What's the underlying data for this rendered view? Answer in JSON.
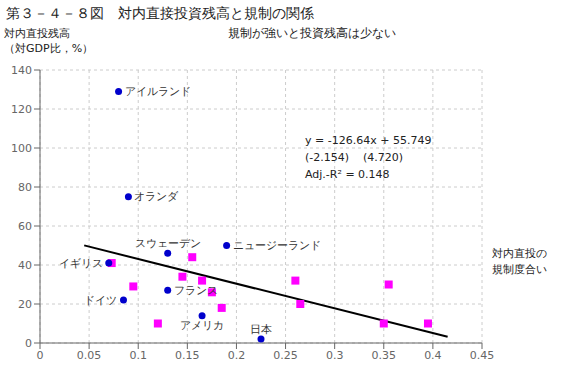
{
  "chart_data": {
    "type": "scatter",
    "title": "第３－４－８図　対内直接投資残高と規制の関係",
    "subtitle": "規制が強いと投資残高は少ない",
    "ylabel": "対内直投残高\n（対GDP比，%）",
    "xlabel": "対内直投の\n規制度合い",
    "xlim": [
      0,
      0.45
    ],
    "ylim": [
      0,
      140
    ],
    "xticks": [
      0,
      0.05,
      0.1,
      0.15,
      0.2,
      0.25,
      0.3,
      0.35,
      0.4,
      0.45
    ],
    "yticks": [
      0,
      20,
      40,
      60,
      80,
      100,
      120,
      140
    ],
    "grid": true,
    "series": [
      {
        "color": "#FF00FF",
        "marker": "square",
        "x": [
          0.073,
          0.095,
          0.12,
          0.145,
          0.155,
          0.165,
          0.175,
          0.185,
          0.26,
          0.265,
          0.35,
          0.355,
          0.395
        ],
        "values": [
          41,
          29,
          10,
          34,
          44,
          32,
          26,
          18,
          32,
          20,
          10,
          30,
          10
        ]
      },
      {
        "color": "#0000CC",
        "marker": "circle",
        "x": [
          0.08,
          0.09,
          0.07,
          0.13,
          0.19,
          0.085,
          0.13,
          0.165,
          0.225
        ],
        "values": [
          129,
          75,
          41,
          46,
          50,
          22,
          27,
          14,
          2
        ],
        "labels": [
          "アイルランド",
          "オランダ",
          "イギリス",
          "スウェーデン",
          "ニュージーランド",
          "ドイツ",
          "フランス",
          "アメリカ",
          "日本"
        ]
      },
      {
        "type": "line",
        "color": "#000000",
        "x": [
          0.045,
          0.415
        ],
        "values": [
          50.0502,
          3.1934
        ]
      }
    ],
    "annotations": [
      "y = -126.64x + 55.749",
      "(-2.154)    (4.720)",
      "Adj.-R² = 0.148"
    ]
  }
}
